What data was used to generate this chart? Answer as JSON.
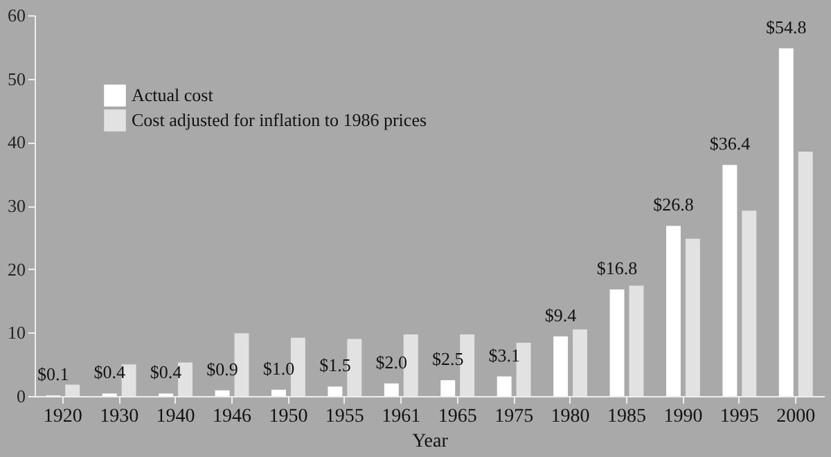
{
  "chart_data": {
    "type": "bar",
    "xlabel": "Year",
    "categories": [
      "1920",
      "1930",
      "1940",
      "1946",
      "1950",
      "1955",
      "1961",
      "1965",
      "1975",
      "1980",
      "1985",
      "1990",
      "1995",
      "2000"
    ],
    "series": [
      {
        "name": "Actual cost",
        "color": "#ffffff",
        "values": [
          0.1,
          0.4,
          0.4,
          0.9,
          1.0,
          1.5,
          2.0,
          2.5,
          3.1,
          9.4,
          16.8,
          26.8,
          36.4,
          54.8
        ],
        "value_labels": [
          "$0.1",
          "$0.4",
          "$0.4",
          "$0.9",
          "$1.0",
          "$1.5",
          "$2.0",
          "$2.5",
          "$3.1",
          "$9.4",
          "$16.8",
          "$26.8",
          "$36.4",
          "$54.8"
        ]
      },
      {
        "name": "Cost adjusted for inflation to 1986 prices",
        "color": "#e2e2e2",
        "values": [
          1.8,
          5.0,
          5.3,
          9.9,
          9.2,
          9.0,
          9.7,
          9.7,
          8.4,
          10.5,
          17.4,
          24.8,
          29.2,
          38.5
        ]
      }
    ],
    "ylim": [
      0,
      60
    ],
    "yticks": [
      0,
      10,
      20,
      30,
      40,
      50,
      60
    ],
    "grid": false,
    "legend": "top left"
  }
}
